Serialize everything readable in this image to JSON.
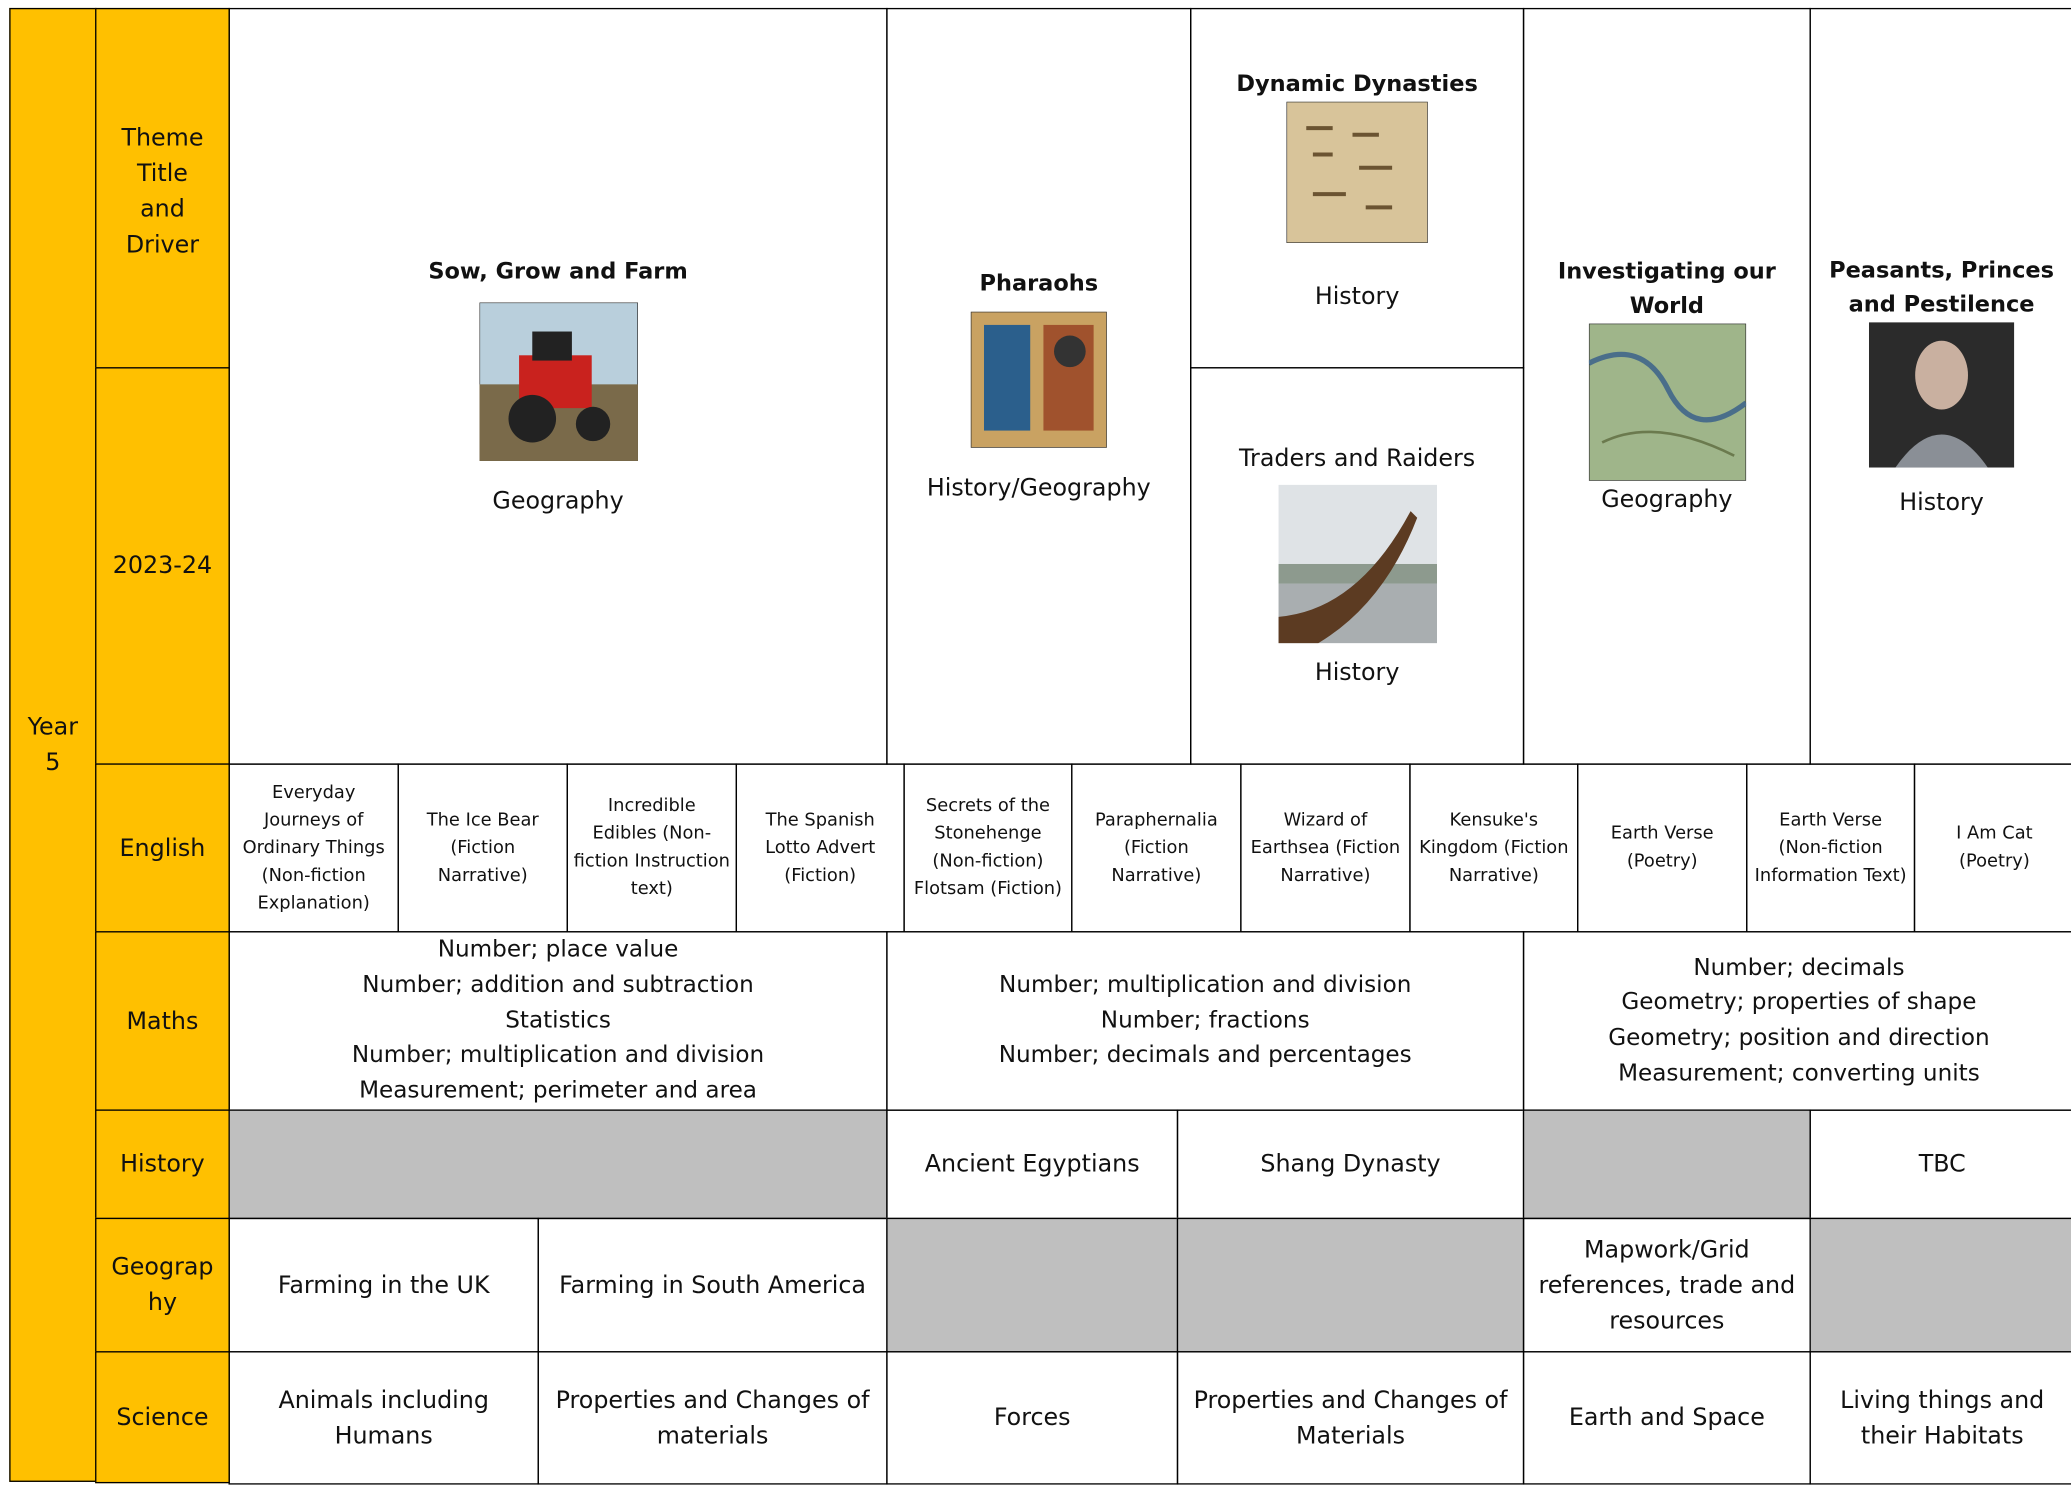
{
  "year_label": "Year 5",
  "row_labels": {
    "theme": "Theme Title and Driver",
    "year": "2023-24",
    "english": "English",
    "maths": "Maths",
    "history": "History",
    "geography": "Geography",
    "science": "Science"
  },
  "themes": [
    {
      "title": "Sow, Grow and Farm",
      "subject": "Geography"
    },
    {
      "title": "Pharaohs",
      "subject": "History/Geography"
    },
    {
      "title": "Dynamic Dynasties",
      "subject": "History"
    },
    {
      "title": "Traders and Raiders",
      "subject": "History"
    },
    {
      "title": "Investigating our World",
      "subject": "Geography"
    },
    {
      "title": "Peasants, Princes and Pestilence",
      "subject": "History"
    }
  ],
  "english": [
    "Everyday Journeys of Ordinary Things (Non-fiction Explanation)",
    "The Ice Bear (Fiction Narrative)",
    "Incredible Edibles (Non-fiction Instruction text)",
    "The Spanish Lotto Advert (Fiction)",
    "Secrets of the Stonehenge (Non-fiction) Flotsam (Fiction)",
    "Paraphernalia (Fiction Narrative)",
    "Wizard of Earthsea (Fiction Narrative)",
    "Kensuke's Kingdom (Fiction Narrative)",
    "Earth Verse (Poetry)",
    "Earth Verse (Non-fiction Information Text)",
    "I Am Cat (Poetry)"
  ],
  "maths": [
    [
      "Number; place value",
      "Number; addition and subtraction",
      "Statistics",
      "Number; multiplication and division",
      "Measurement; perimeter and area"
    ],
    [
      "Number; multiplication and division",
      "Number; fractions",
      "Number; decimals and percentages"
    ],
    [
      "Number; decimals",
      "Geometry; properties of shape",
      "Geometry; position and direction",
      "Measurement; converting units"
    ]
  ],
  "history": [
    "Ancient Egyptians",
    "Shang Dynasty",
    "TBC"
  ],
  "geography": [
    "Farming in the UK",
    "Farming in South America",
    "Mapwork/Grid references, trade and resources"
  ],
  "science": [
    "Animals including Humans",
    "Properties and Changes of materials",
    "Forces",
    "Properties and Changes of Materials",
    "Earth and Space",
    "Living things and their Habitats"
  ]
}
